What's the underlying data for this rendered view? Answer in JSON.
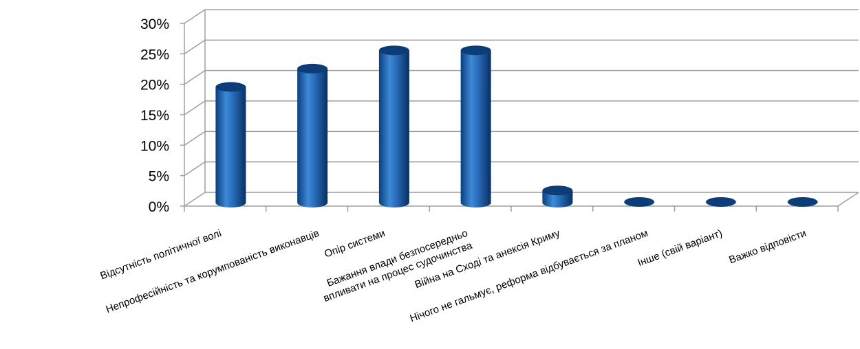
{
  "chart_data": {
    "type": "bar",
    "title": "",
    "xlabel": "",
    "ylabel": "",
    "ylim": [
      0,
      0.3
    ],
    "y_ticks": [
      "0%",
      "5%",
      "10%",
      "15%",
      "20%",
      "25%",
      "30%"
    ],
    "grid": true,
    "legend": "none",
    "style": "3d-cylinder",
    "categories": [
      [
        "Відсутність політичної волі"
      ],
      [
        "Непрофесійність та корумпованість  виконавців"
      ],
      [
        "Опір системи"
      ],
      [
        "Бажання влади безпосередньо",
        "впливати на процес судочинства"
      ],
      [
        "Війна на Сході та анексія Криму"
      ],
      [
        "Нічого не гальмує, реформа відбувається за планом"
      ],
      [
        "Інше (свій варіант)"
      ],
      [
        "Важко відповісти"
      ]
    ],
    "values": [
      0.19,
      0.22,
      0.25,
      0.25,
      0.02,
      0.0,
      0.0,
      0.0
    ],
    "bar_color": "#1f5fa8",
    "bar_top_color": "#0d3d78",
    "grid_color": "#9e9e9e"
  }
}
